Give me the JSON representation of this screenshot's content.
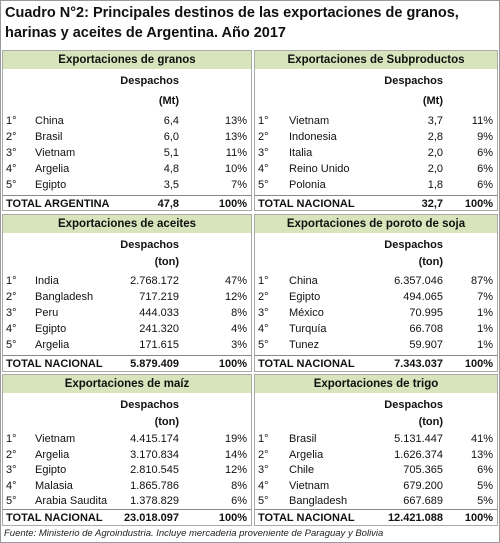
{
  "title": "Cuadro N°2: Principales destinos de las exportaciones de granos, harinas y aceites de Argentina. Año 2017",
  "panels": [
    {
      "title": "Exportaciones de granos",
      "header": "Despachos",
      "unit": "(Mt)",
      "rows": [
        [
          "1°",
          "China",
          "6,4",
          "13%"
        ],
        [
          "2°",
          "Brasil",
          "6,0",
          "13%"
        ],
        [
          "3°",
          "Vietnam",
          "5,1",
          "11%"
        ],
        [
          "4°",
          "Argelia",
          "4,8",
          "10%"
        ],
        [
          "5°",
          "Egipto",
          "3,5",
          "7%"
        ]
      ],
      "total": [
        "TOTAL ARGENTINA",
        "47,8",
        "100%"
      ]
    },
    {
      "title": "Exportaciones de Subproductos",
      "header": "Despachos",
      "unit": "(Mt)",
      "rows": [
        [
          "1°",
          "Vietnam",
          "3,7",
          "11%"
        ],
        [
          "2°",
          "Indonesia",
          "2,8",
          "9%"
        ],
        [
          "3°",
          "Italia",
          "2,0",
          "6%"
        ],
        [
          "4°",
          "Reino Unido",
          "2,0",
          "6%"
        ],
        [
          "5°",
          "Polonia",
          "1,8",
          "6%"
        ]
      ],
      "total": [
        "TOTAL NACIONAL",
        "32,7",
        "100%"
      ]
    },
    {
      "title": "Exportaciones de aceites",
      "header": "Despachos",
      "unit": "(ton)",
      "rows": [
        [
          "1°",
          "India",
          "2.768.172",
          "47%"
        ],
        [
          "2°",
          "Bangladesh",
          "717.219",
          "12%"
        ],
        [
          "3°",
          "Peru",
          "444.033",
          "8%"
        ],
        [
          "4°",
          "Egipto",
          "241.320",
          "4%"
        ],
        [
          "5°",
          "Argelia",
          "171.615",
          "3%"
        ]
      ],
      "total": [
        "TOTAL NACIONAL",
        "5.879.409",
        "100%"
      ]
    },
    {
      "title": "Exportaciones de poroto de soja",
      "header": "Despachos",
      "unit": "(ton)",
      "rows": [
        [
          "1°",
          "China",
          "6.357.046",
          "87%"
        ],
        [
          "2°",
          "Egipto",
          "494.065",
          "7%"
        ],
        [
          "3°",
          "México",
          "70.995",
          "1%"
        ],
        [
          "4°",
          "Turquía",
          "66.708",
          "1%"
        ],
        [
          "5°",
          "Tunez",
          "59.907",
          "1%"
        ]
      ],
      "total": [
        "TOTAL NACIONAL",
        "7.343.037",
        "100%"
      ]
    },
    {
      "title": "Exportaciones de maíz",
      "header": "Despachos",
      "unit": "(ton)",
      "rows": [
        [
          "1°",
          "Vietnam",
          "4.415.174",
          "19%"
        ],
        [
          "2°",
          "Argelia",
          "3.170.834",
          "14%"
        ],
        [
          "3°",
          "Egipto",
          "2.810.545",
          "12%"
        ],
        [
          "4°",
          "Malasia",
          "1.865.786",
          "8%"
        ],
        [
          "5°",
          "Arabia Saudita",
          "1.378.829",
          "6%"
        ]
      ],
      "total": [
        "TOTAL NACIONAL",
        "23.018.097",
        "100%"
      ]
    },
    {
      "title": "Exportaciones de trigo",
      "header": "Despachos",
      "unit": "(ton)",
      "rows": [
        [
          "1°",
          "Brasil",
          "5.131.447",
          "41%"
        ],
        [
          "2°",
          "Argelia",
          "1.626.374",
          "13%"
        ],
        [
          "3°",
          "Chile",
          "705.365",
          "6%"
        ],
        [
          "4°",
          "Vietnam",
          "679.200",
          "5%"
        ],
        [
          "5°",
          "Bangladesh",
          "667.689",
          "5%"
        ]
      ],
      "total": [
        "TOTAL NACIONAL",
        "12.421.088",
        "100%"
      ]
    }
  ],
  "footer": "Fuente: Ministerio de Agroindustria. Incluye mercaderia proveniente de Paraguay y Bolivia"
}
